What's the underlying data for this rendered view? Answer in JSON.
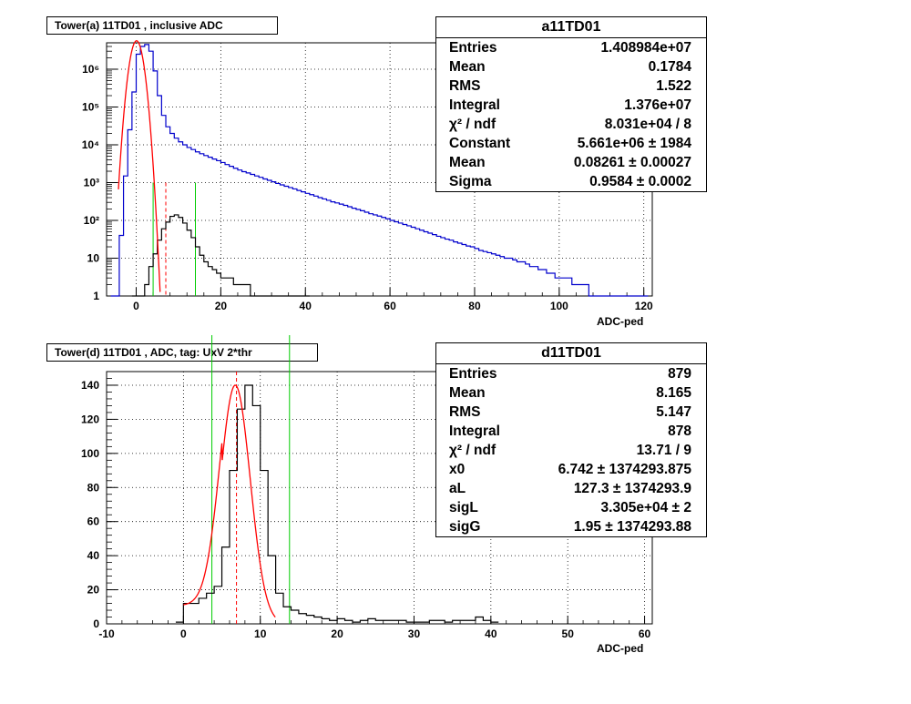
{
  "chart_data": [
    {
      "type": "histogram",
      "title": "Tower(a) 11TD01 , inclusive ADC",
      "xlabel": "ADC-ped",
      "ylabel": "",
      "yscale": "log",
      "xlim": [
        -7,
        122
      ],
      "ylim": [
        1,
        5000000
      ],
      "x_ticks": [
        0,
        20,
        40,
        60,
        80,
        100,
        120
      ],
      "y_ticks": [
        {
          "v": 1,
          "label": "1"
        },
        {
          "v": 10,
          "label": "10"
        },
        {
          "v": 100,
          "label": "10²"
        },
        {
          "v": 1000,
          "label": "10³"
        },
        {
          "v": 10000,
          "label": "10⁴"
        },
        {
          "v": 100000,
          "label": "10⁵"
        },
        {
          "v": 1000000,
          "label": "10⁶"
        }
      ],
      "grid": true,
      "series": [
        {
          "name": "a11TD01",
          "color": "#0000cc",
          "bin_width": 1,
          "x_start": -6,
          "values": [
            1,
            1,
            40,
            1500,
            25000,
            250000,
            2500000,
            4000000,
            4500000,
            3000000,
            900000,
            200000,
            60000,
            30000,
            20000,
            15000,
            12000,
            10000,
            8500,
            7500,
            6500,
            5800,
            5200,
            4700,
            4200,
            3800,
            3400,
            3000,
            2700,
            2400,
            2150,
            1950,
            1800,
            1650,
            1500,
            1380,
            1250,
            1150,
            1050,
            950,
            870,
            800,
            740,
            680,
            620,
            570,
            520,
            480,
            440,
            400,
            370,
            340,
            310,
            290,
            270,
            250,
            230,
            210,
            195,
            180,
            165,
            150,
            140,
            130,
            120,
            110,
            100,
            92,
            85,
            78,
            72,
            66,
            60,
            55,
            50,
            46,
            42,
            38,
            35,
            32,
            30,
            27,
            25,
            23,
            21,
            20,
            18,
            16,
            15,
            14,
            13,
            12,
            11,
            10,
            10,
            9,
            8,
            8,
            7,
            6,
            6,
            5,
            5,
            4,
            4,
            3,
            3,
            3,
            3,
            2,
            2,
            2,
            2,
            1,
            1,
            1,
            1,
            1,
            1,
            1,
            1,
            1,
            1,
            1,
            1,
            1,
            1
          ]
        },
        {
          "name": "d11TD01",
          "color": "#000000",
          "bin_width": 1,
          "x_start": -1,
          "values": [
            1,
            1,
            1,
            2,
            6,
            13,
            30,
            60,
            90,
            128,
            140,
            120,
            85,
            55,
            35,
            20,
            12,
            8,
            6,
            5,
            4,
            3,
            3,
            3,
            2,
            2,
            2,
            2,
            1,
            1,
            1,
            1,
            1,
            1,
            1,
            1,
            1,
            1,
            1,
            1,
            1,
            1
          ]
        }
      ],
      "fit": {
        "name": "gaus",
        "color": "#ff0000",
        "constant": 5661000,
        "mean": 0.08261,
        "sigma": 0.9584
      },
      "markers": [
        {
          "x": 4,
          "color": "#00cc00",
          "style": "solid"
        },
        {
          "x": 14,
          "color": "#00cc00",
          "style": "solid"
        },
        {
          "x": 7,
          "color": "#ff0000",
          "style": "dashed"
        }
      ],
      "stats": {
        "name": "a11TD01",
        "rows": [
          {
            "label": "Entries",
            "value": "1.408984e+07"
          },
          {
            "label": "Mean",
            "value": "0.1784"
          },
          {
            "label": "RMS",
            "value": "1.522"
          },
          {
            "label": "Integral",
            "value": "1.376e+07"
          },
          {
            "label": "χ² / ndf",
            "value": "8.031e+04 / 8"
          },
          {
            "label": "Constant",
            "value": "5.661e+06",
            "err": "1984"
          },
          {
            "label": "Mean",
            "value": "0.08261",
            "err": "0.00027"
          },
          {
            "label": "Sigma",
            "value": "0.9584",
            "err": "0.0002"
          }
        ]
      }
    },
    {
      "type": "histogram",
      "title": "Tower(d) 11TD01 , ADC, tag: UxV 2*thr",
      "xlabel": "ADC-ped",
      "ylabel": "",
      "yscale": "linear",
      "xlim": [
        -10,
        61
      ],
      "ylim": [
        0,
        148
      ],
      "x_ticks": [
        -10,
        0,
        10,
        20,
        30,
        40,
        50,
        60
      ],
      "y_ticks": [
        0,
        20,
        40,
        60,
        80,
        100,
        120,
        140
      ],
      "grid": true,
      "series": [
        {
          "name": "d11TD01",
          "color": "#000000",
          "bin_width": 1,
          "x_start": -1,
          "values": [
            1,
            12,
            12,
            15,
            18,
            22,
            45,
            90,
            126,
            140,
            128,
            90,
            40,
            18,
            10,
            8,
            6,
            5,
            4,
            3,
            2,
            3,
            2,
            1,
            2,
            3,
            2,
            2,
            2,
            2,
            1,
            1,
            1,
            2,
            2,
            1,
            2,
            2,
            2,
            4,
            2,
            1
          ]
        }
      ],
      "fit": {
        "name": "langaus",
        "color": "#ff0000",
        "x0": 6.742,
        "sigG": 1.95,
        "amp": 140
      },
      "markers": [
        {
          "x": 3.7,
          "color": "#00cc00",
          "style": "solid"
        },
        {
          "x": 13.8,
          "color": "#00cc00",
          "style": "solid"
        },
        {
          "x": 6.9,
          "color": "#ff0000",
          "style": "dashed"
        }
      ],
      "stats": {
        "name": "d11TD01",
        "rows": [
          {
            "label": "Entries",
            "value": "879"
          },
          {
            "label": "Mean",
            "value": "8.165"
          },
          {
            "label": "RMS",
            "value": "5.147"
          },
          {
            "label": "Integral",
            "value": "878"
          },
          {
            "label": "χ² / ndf",
            "value": "13.71 / 9"
          },
          {
            "label": "x0",
            "value": "6.742",
            "err": "1374293.875"
          },
          {
            "label": "aL",
            "value": "127.3",
            "err": "1374293.9"
          },
          {
            "label": "sigL",
            "value": "3.305e+04",
            "err": "2"
          },
          {
            "label": "sigG",
            "value": "1.95",
            "err": "1374293.88"
          }
        ]
      }
    }
  ]
}
